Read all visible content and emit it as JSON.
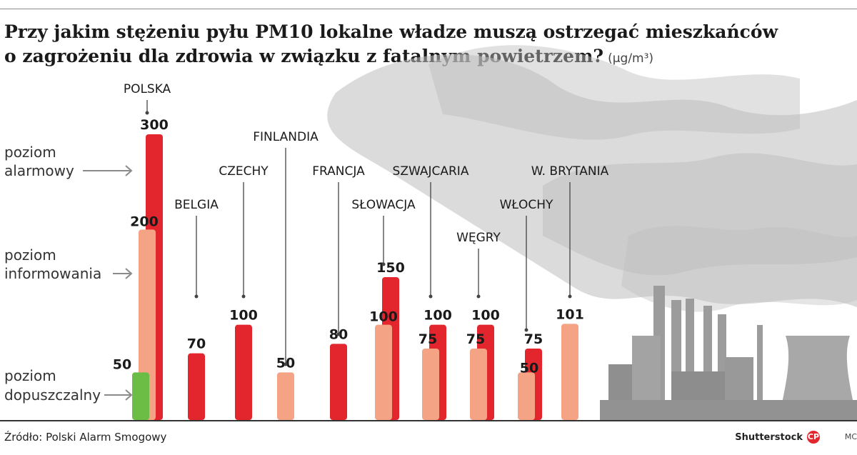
{
  "title": {
    "line1": "Przy jakim stężeniu pyłu PM10 lokalne władze muszą ostrzegać mieszkańców",
    "line2": "o zagrożeniu dla zdrowia w związku z fatalnym powietrzem?",
    "unit": "(µg/m³)"
  },
  "footer": {
    "source": "Źródło: Polski Alarm Smogowy",
    "credit": "Shutterstock",
    "author": "MC"
  },
  "colors": {
    "alarm": "#e3262d",
    "inform": "#f4a385",
    "permitted": "#6cbd45",
    "label_line": "#444444",
    "smoke": "#bdbdbd",
    "factory": "#9c9c9c"
  },
  "chart_data": {
    "type": "bar",
    "title": "Przy jakim stężeniu pyłu PM10 lokalne władze muszą ostrzegać mieszkańców o zagrożeniu dla zdrowia w związku z fatalnym powietrzem?",
    "ylabel": "(µg/m³)",
    "ylim": [
      0,
      300
    ],
    "levels": [
      {
        "key": "alarm",
        "label_line1": "poziom",
        "label_line2": "alarmowy",
        "value": 300
      },
      {
        "key": "inform",
        "label_line1": "poziom",
        "label_line2": "informowania",
        "value": 200
      },
      {
        "key": "permitted",
        "label_line1": "poziom",
        "label_line2": "dopuszczalny",
        "value": 50
      }
    ],
    "countries": [
      {
        "name": "POLSKA",
        "bars": [
          {
            "level": "alarm",
            "value": 300
          },
          {
            "level": "inform",
            "value": 200
          },
          {
            "level": "permitted",
            "value": 50
          }
        ]
      },
      {
        "name": "BELGIA",
        "bars": [
          {
            "level": "alarm",
            "value": 70
          }
        ]
      },
      {
        "name": "CZECHY",
        "bars": [
          {
            "level": "alarm",
            "value": 100
          }
        ]
      },
      {
        "name": "FINLANDIA",
        "bars": [
          {
            "level": "inform",
            "value": 50
          }
        ]
      },
      {
        "name": "FRANCJA",
        "bars": [
          {
            "level": "alarm",
            "value": 80
          }
        ]
      },
      {
        "name": "SŁOWACJA",
        "bars": [
          {
            "level": "alarm",
            "value": 150
          },
          {
            "level": "inform",
            "value": 100
          }
        ]
      },
      {
        "name": "SZWAJCARIA",
        "bars": [
          {
            "level": "alarm",
            "value": 100
          },
          {
            "level": "inform",
            "value": 75
          }
        ]
      },
      {
        "name": "WĘGRY",
        "bars": [
          {
            "level": "alarm",
            "value": 100
          },
          {
            "level": "inform",
            "value": 75
          }
        ]
      },
      {
        "name": "WŁOCHY",
        "bars": [
          {
            "level": "alarm",
            "value": 75
          },
          {
            "level": "inform",
            "value": 50
          }
        ]
      },
      {
        "name": "W. BRYTANIA",
        "bars": [
          {
            "level": "inform",
            "value": 101
          }
        ]
      }
    ]
  }
}
